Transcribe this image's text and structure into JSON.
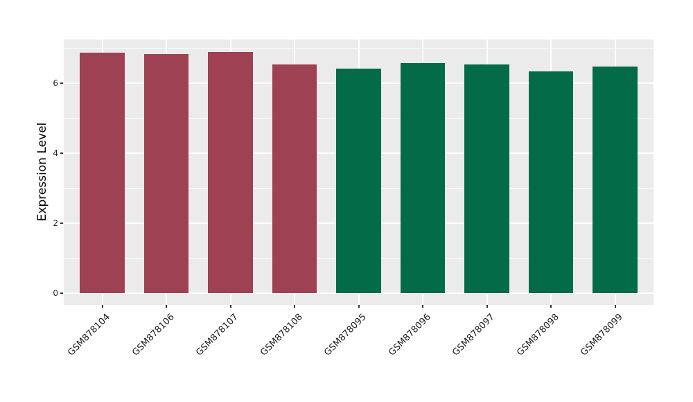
{
  "chart_data": {
    "type": "bar",
    "title": "",
    "xlabel": "",
    "ylabel": "Expression Level",
    "categories": [
      "GSM878104",
      "GSM878106",
      "GSM878107",
      "GSM878108",
      "GSM878095",
      "GSM878096",
      "GSM878097",
      "GSM878098",
      "GSM878099"
    ],
    "values": [
      6.87,
      6.82,
      6.89,
      6.53,
      6.4,
      6.57,
      6.53,
      6.33,
      6.47
    ],
    "bar_colors": [
      "#9e4152",
      "#9e4152",
      "#9e4152",
      "#9e4152",
      "#046b48",
      "#046b48",
      "#046b48",
      "#046b48",
      "#046b48"
    ],
    "ylim": [
      -0.34,
      7.24
    ],
    "yticks": [
      0,
      2,
      4,
      6
    ],
    "yticks_minor": [
      1,
      3,
      5,
      7
    ],
    "grid": "on",
    "legend": "none",
    "x_tick_rotation_deg": 45,
    "panel_background": "#ebebeb",
    "grid_color": "#ffffff",
    "tick_color": "#333333"
  }
}
